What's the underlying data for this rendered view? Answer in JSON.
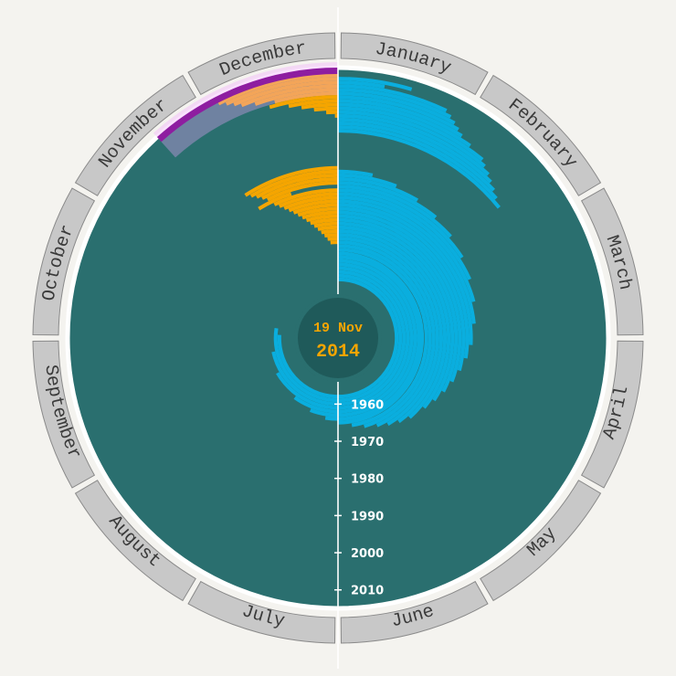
{
  "chart_data": {
    "type": "radial-bar",
    "center_date": {
      "day": "19 Nov",
      "year": "2014"
    },
    "months": [
      "January",
      "February",
      "March",
      "April",
      "May",
      "June",
      "July",
      "August",
      "September",
      "October",
      "November",
      "December"
    ],
    "radial_axis": {
      "ticks": [
        "1960",
        "1970",
        "1980",
        "1990",
        "2000",
        "2010"
      ],
      "range": [
        1955,
        2014
      ]
    },
    "series": [
      {
        "color": "#f5a500",
        "arcs": [
          [
            2013,
            11.1,
            12.0
          ],
          [
            2012,
            11.15,
            12.0
          ],
          [
            2011,
            11.2,
            12.0
          ],
          [
            2010,
            11.25,
            12.0
          ],
          [
            2009,
            11.35,
            12.0
          ],
          [
            2008,
            11.5,
            12.0
          ],
          [
            2007,
            11.45,
            12.0
          ],
          [
            2006,
            11.6,
            12.0
          ],
          [
            2005,
            11.7,
            12.0
          ],
          [
            2004,
            11.8,
            12.0
          ],
          [
            2003,
            11.9,
            12.0
          ],
          [
            2002,
            12.0,
            12.0
          ],
          [
            1988,
            10.9,
            12.0
          ],
          [
            1987,
            10.95,
            12.0
          ],
          [
            1986,
            11.0,
            12.0
          ],
          [
            1985,
            11.05,
            12.0
          ],
          [
            1984,
            11.1,
            12.0
          ],
          [
            1983,
            10.95,
            11.4
          ],
          [
            1982,
            11.15,
            12.0
          ],
          [
            1981,
            11.2,
            12.0
          ],
          [
            1980,
            11.25,
            12.0
          ],
          [
            1979,
            11.3,
            12.0
          ],
          [
            1978,
            11.35,
            12.0
          ],
          [
            1977,
            11.4,
            12.0
          ],
          [
            1976,
            11.45,
            12.0
          ],
          [
            1975,
            11.5,
            12.0
          ],
          [
            1974,
            11.55,
            12.0
          ],
          [
            1973,
            11.6,
            12.0
          ],
          [
            1972,
            11.65,
            12.0
          ],
          [
            1971,
            11.7,
            12.0
          ],
          [
            1970,
            11.75,
            12.0
          ],
          [
            1969,
            11.8,
            12.0
          ],
          [
            1968,
            11.85,
            12.0
          ]
        ]
      },
      {
        "color": "#0aaede",
        "arcs": [
          [
            2012,
            0.0,
            0.55
          ],
          [
            2011,
            0.0,
            0.35
          ],
          [
            2010,
            0.0,
            0.85
          ],
          [
            2009,
            0.0,
            0.9
          ],
          [
            2008,
            0.0,
            0.95
          ],
          [
            2007,
            0.0,
            1.0
          ],
          [
            2006,
            0.0,
            1.05
          ],
          [
            2005,
            0.0,
            1.15
          ],
          [
            2004,
            0.0,
            1.3
          ],
          [
            2003,
            0.0,
            1.35
          ],
          [
            2002,
            0.0,
            1.42
          ],
          [
            2001,
            0.0,
            1.48
          ],
          [
            2000,
            0.0,
            1.55
          ],
          [
            1999,
            0.0,
            1.62
          ],
          [
            1998,
            0.0,
            1.7
          ],
          [
            1987,
            0.0,
            0.4
          ],
          [
            1986,
            0.0,
            0.7
          ],
          [
            1985,
            0.0,
            1.0
          ],
          [
            1984,
            0.0,
            1.3
          ],
          [
            1983,
            0.0,
            1.6
          ],
          [
            1982,
            0.0,
            1.9
          ],
          [
            1981,
            0.0,
            2.2
          ],
          [
            1980,
            0.0,
            2.5
          ],
          [
            1979,
            0.0,
            2.8
          ],
          [
            1978,
            0.0,
            3.1
          ],
          [
            1977,
            0.0,
            3.3
          ],
          [
            1976,
            0.0,
            3.5
          ],
          [
            1975,
            0.0,
            3.7
          ],
          [
            1974,
            0.0,
            3.9
          ],
          [
            1973,
            0.0,
            4.1
          ],
          [
            1972,
            0.0,
            4.3
          ],
          [
            1971,
            0.0,
            4.6
          ],
          [
            1970,
            0.0,
            4.8
          ],
          [
            1969,
            0.0,
            5.0
          ],
          [
            1968,
            0.0,
            5.2
          ],
          [
            1967,
            0.0,
            5.45
          ],
          [
            1966,
            0.0,
            5.7
          ],
          [
            1965,
            0.0,
            6.0
          ],
          [
            1964,
            0.0,
            6.3
          ],
          [
            1963,
            0.0,
            6.7
          ],
          [
            1962,
            0.0,
            7.2
          ],
          [
            1961,
            0.0,
            8.0
          ],
          [
            1960,
            0.0,
            8.6
          ],
          [
            1959,
            0.0,
            9.3
          ],
          [
            1958,
            0.0,
            9.1
          ]
        ]
      }
    ],
    "highlight": {
      "color": "#8e1da0",
      "year": 2014,
      "start_month": 10.6,
      "end_month": 12.0
    }
  }
}
